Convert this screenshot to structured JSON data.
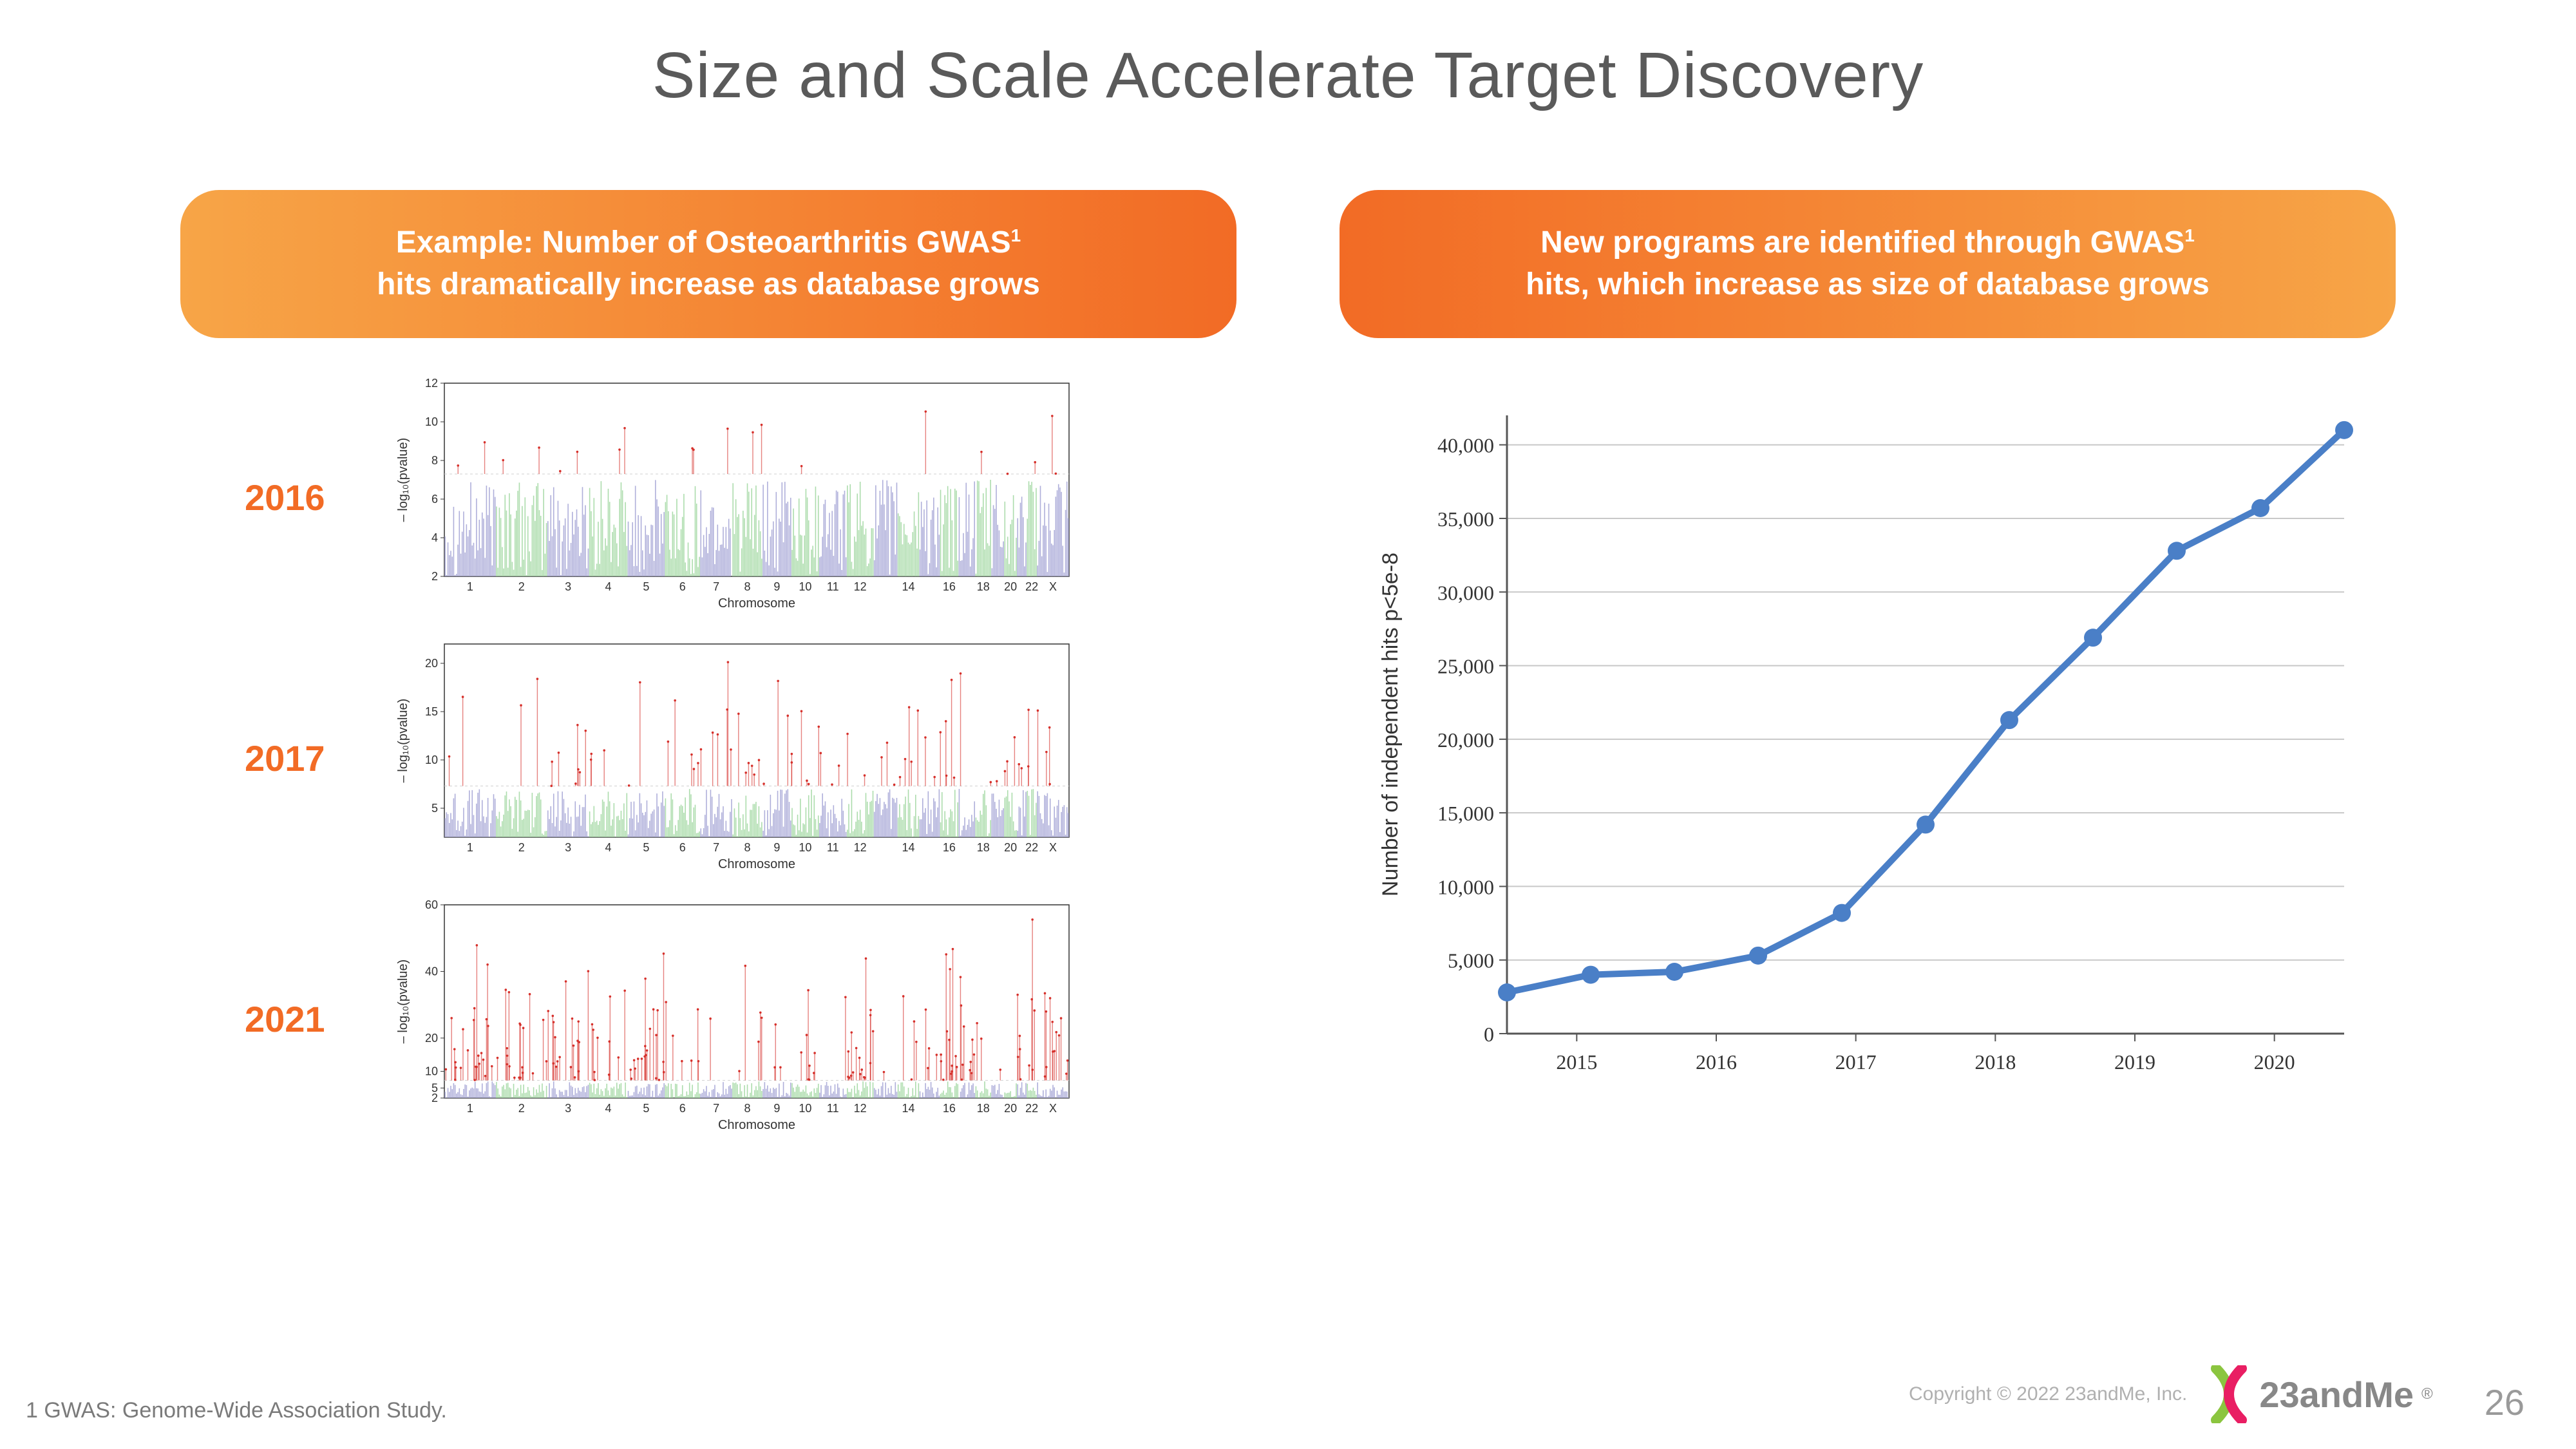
{
  "slide": {
    "title": "Size and Scale Accelerate Target Discovery",
    "page_number": "26",
    "footnote": "1 GWAS: Genome-Wide Association Study.",
    "copyright": "Copyright © 2022 23andMe, Inc.",
    "logo_text": "23andMe"
  },
  "left": {
    "banner_line1": "Example: Number of Osteoarthritis GWAS",
    "banner_sup": "1",
    "banner_line2": "hits dramatically increase as database grows",
    "charts": [
      {
        "year": "2016",
        "type": "manhattan",
        "ylabel": "– log₁₀(pvalue)",
        "xlabel": "Chromosome",
        "x_categories": [
          "1",
          "2",
          "3",
          "4",
          "5",
          "6",
          "7",
          "8",
          "9",
          "10",
          "11",
          "12",
          "",
          "14",
          "",
          "16",
          "",
          "18",
          "",
          "20",
          "",
          "22",
          "X"
        ],
        "ylim": [
          2,
          12
        ],
        "yticks": [
          2,
          4,
          6,
          8,
          10,
          12
        ],
        "threshold_y": 7.3,
        "bar_colors_alt": [
          "#a7a7d6",
          "#a4d9a4"
        ],
        "hit_color": "#d6302b",
        "grid_color": "#d0d0d0",
        "tick_fontsize": 18,
        "density": 0.25
      },
      {
        "year": "2017",
        "type": "manhattan",
        "ylabel": "– log₁₀(pvalue)",
        "xlabel": "Chromosome",
        "x_categories": [
          "1",
          "2",
          "3",
          "4",
          "5",
          "6",
          "7",
          "8",
          "9",
          "10",
          "11",
          "12",
          "",
          "14",
          "",
          "16",
          "",
          "18",
          "",
          "20",
          "",
          "22",
          "X"
        ],
        "ylim": [
          2,
          22
        ],
        "yticks": [
          5,
          10,
          15,
          20
        ],
        "threshold_y": 7.3,
        "bar_colors_alt": [
          "#a7a7d6",
          "#a4d9a4"
        ],
        "hit_color": "#d6302b",
        "grid_color": "#d0d0d0",
        "tick_fontsize": 18,
        "density": 0.55
      },
      {
        "year": "2021",
        "type": "manhattan",
        "ylabel": "– log₁₀(pvalue)",
        "xlabel": "Chromosome",
        "x_categories": [
          "1",
          "2",
          "3",
          "4",
          "5",
          "6",
          "7",
          "8",
          "9",
          "10",
          "11",
          "12",
          "",
          "14",
          "",
          "16",
          "",
          "18",
          "",
          "20",
          "",
          "22",
          "X"
        ],
        "ylim": [
          2,
          60
        ],
        "yticks": [
          2,
          5,
          10,
          20,
          40,
          60
        ],
        "threshold_y": 7.3,
        "bar_colors_alt": [
          "#a7a7d6",
          "#a4d9a4"
        ],
        "hit_color": "#d6302b",
        "grid_color": "#d0d0d0",
        "tick_fontsize": 18,
        "density": 0.95
      }
    ]
  },
  "right": {
    "banner_line1": "New programs are identified through GWAS",
    "banner_sup": "1",
    "banner_line2": "hits, which increase as size of database grows",
    "chart": {
      "type": "line",
      "ylabel": "Number of independent hits p<5e-8",
      "x_categories": [
        "2015",
        "2016",
        "2017",
        "2018",
        "2019",
        "2020"
      ],
      "y_values_by_half": [
        2800,
        4000,
        4200,
        5300,
        8200,
        14200,
        21300,
        26900,
        32800,
        35700,
        41000
      ],
      "ylim": [
        0,
        42000
      ],
      "yticks": [
        0,
        5000,
        10000,
        15000,
        20000,
        25000,
        30000,
        35000,
        40000
      ],
      "ytick_labels": [
        "0",
        "5,000",
        "10,000",
        "15,000",
        "20,000",
        "25,000",
        "30,000",
        "35,000",
        "40,000"
      ],
      "line_color": "#4a7fc7",
      "marker_color": "#4a7fc7",
      "marker_radius": 14,
      "line_width": 10,
      "grid_color": "#c8c8c8",
      "axis_color": "#555555",
      "tick_fontsize": 32,
      "label_fontsize": 34,
      "background": "#ffffff"
    }
  },
  "logo": {
    "helix_green": "#8bc53f",
    "helix_pink": "#e91e63"
  }
}
